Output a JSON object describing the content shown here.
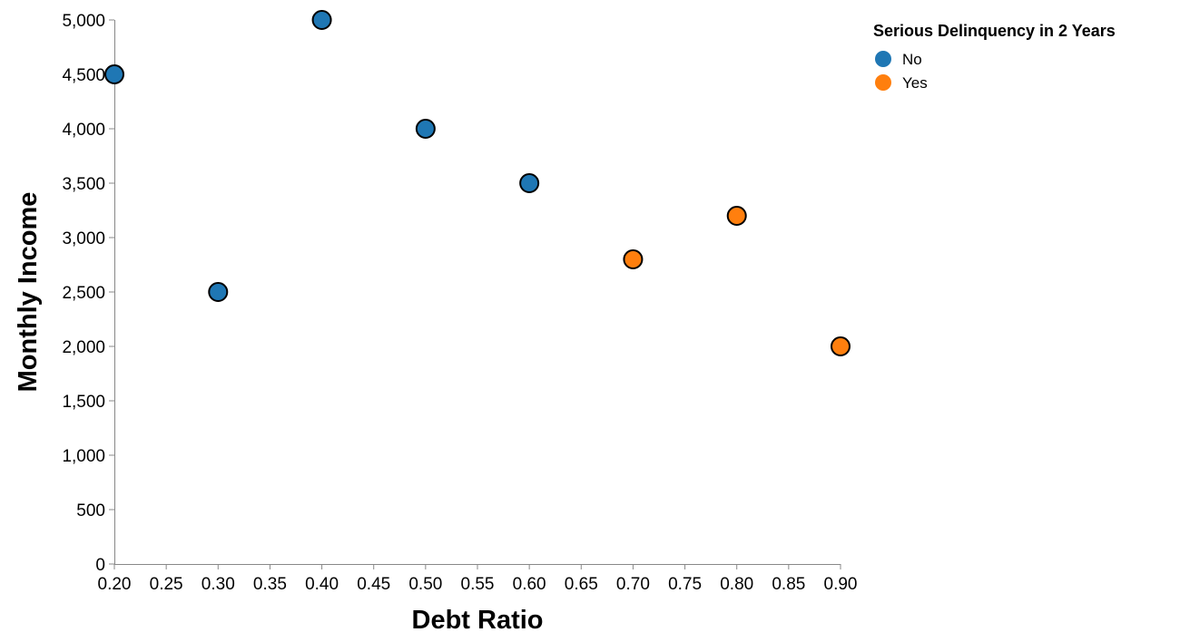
{
  "chart_data": {
    "type": "scatter",
    "xlabel": "Debt Ratio",
    "ylabel": "Monthly Income",
    "xlim": [
      0.2,
      0.9
    ],
    "ylim": [
      0,
      5000
    ],
    "x_ticks": [
      0.2,
      0.25,
      0.3,
      0.35,
      0.4,
      0.45,
      0.5,
      0.55,
      0.6,
      0.65,
      0.7,
      0.75,
      0.8,
      0.85,
      0.9
    ],
    "x_tick_labels": [
      "0.20",
      "0.25",
      "0.30",
      "0.35",
      "0.40",
      "0.45",
      "0.50",
      "0.55",
      "0.60",
      "0.65",
      "0.70",
      "0.75",
      "0.80",
      "0.85",
      "0.90"
    ],
    "y_ticks": [
      0,
      500,
      1000,
      1500,
      2000,
      2500,
      3000,
      3500,
      4000,
      4500,
      5000
    ],
    "y_tick_labels": [
      "0",
      "500",
      "1,000",
      "1,500",
      "2,000",
      "2,500",
      "3,000",
      "3,500",
      "4,000",
      "4,500",
      "5,000"
    ],
    "grid": false,
    "legend": {
      "title": "Serious Delinquency in 2 Years",
      "position": "top-right"
    },
    "series": [
      {
        "name": "No",
        "color": "#1f77b4",
        "points": [
          {
            "x": 0.2,
            "y": 4500
          },
          {
            "x": 0.3,
            "y": 2500
          },
          {
            "x": 0.4,
            "y": 5000
          },
          {
            "x": 0.5,
            "y": 4000
          },
          {
            "x": 0.6,
            "y": 3500
          }
        ]
      },
      {
        "name": "Yes",
        "color": "#ff7f0e",
        "points": [
          {
            "x": 0.7,
            "y": 2800
          },
          {
            "x": 0.8,
            "y": 3200
          },
          {
            "x": 0.9,
            "y": 2000
          }
        ]
      }
    ]
  }
}
